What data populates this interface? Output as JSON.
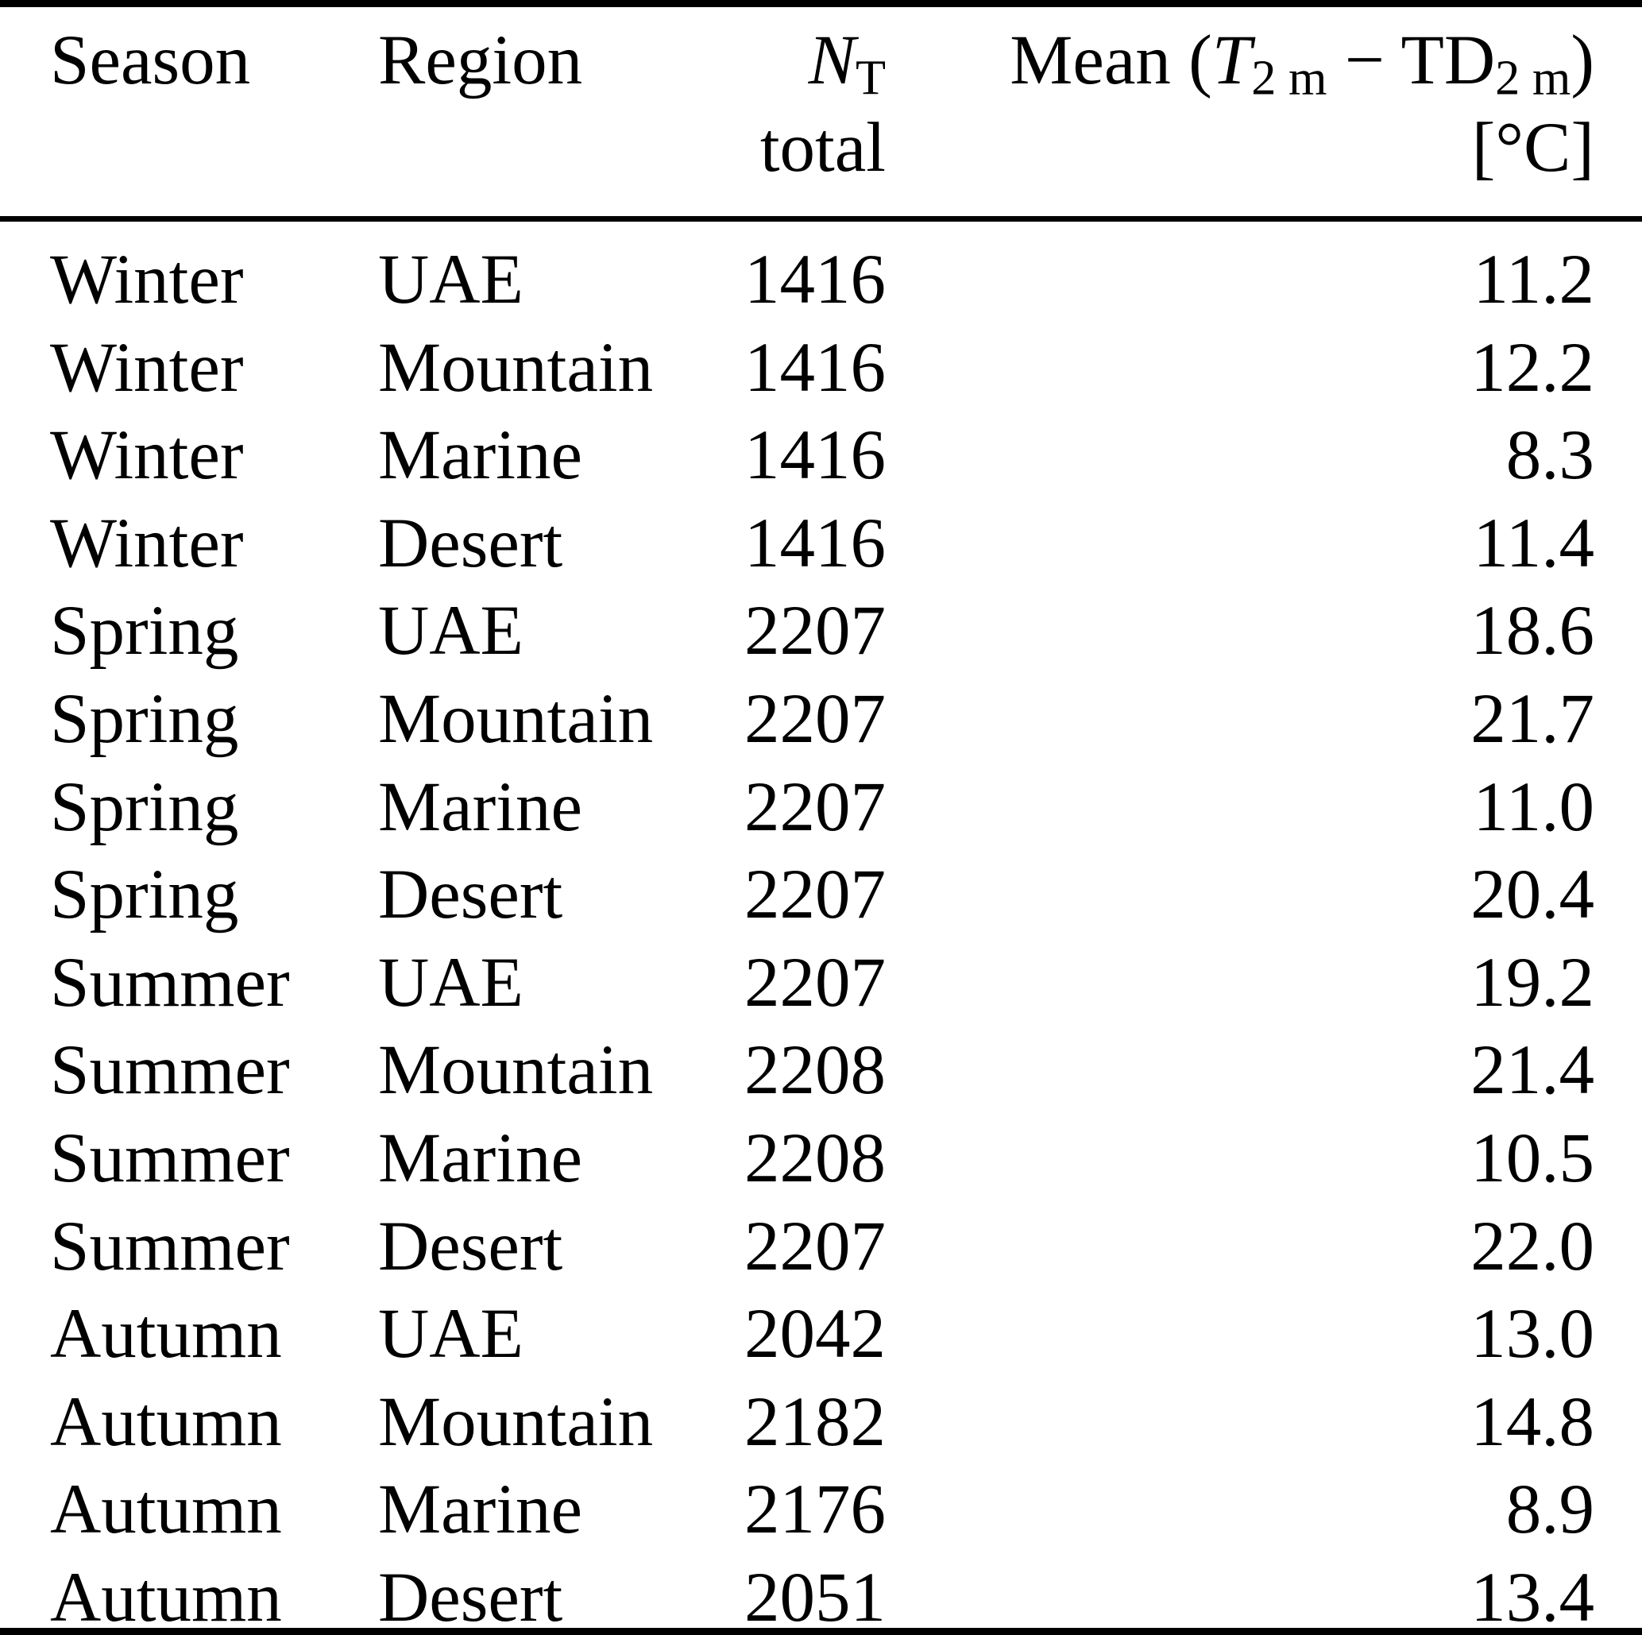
{
  "colors": {
    "background": "#ffffff",
    "text": "#000000",
    "rules": "#000000"
  },
  "table": {
    "header": {
      "season": "Season",
      "region": "Region",
      "n": {
        "symbol": "N",
        "subscript": "T",
        "line2": "total"
      },
      "mean": {
        "prefix": "Mean (",
        "t": "T",
        "t_sub": "2 m",
        "operator": " − ",
        "td": "TD",
        "td_sub": "2 m",
        "suffix": ")",
        "unit": "[°C]"
      }
    },
    "rows": [
      {
        "season": "Winter",
        "region": "UAE",
        "n_total": "1416",
        "mean": "11.2"
      },
      {
        "season": "Winter",
        "region": "Mountain",
        "n_total": "1416",
        "mean": "12.2"
      },
      {
        "season": "Winter",
        "region": "Marine",
        "n_total": "1416",
        "mean": "8.3"
      },
      {
        "season": "Winter",
        "region": "Desert",
        "n_total": "1416",
        "mean": "11.4"
      },
      {
        "season": "Spring",
        "region": "UAE",
        "n_total": "2207",
        "mean": "18.6"
      },
      {
        "season": "Spring",
        "region": "Mountain",
        "n_total": "2207",
        "mean": "21.7"
      },
      {
        "season": "Spring",
        "region": "Marine",
        "n_total": "2207",
        "mean": "11.0"
      },
      {
        "season": "Spring",
        "region": "Desert",
        "n_total": "2207",
        "mean": "20.4"
      },
      {
        "season": "Summer",
        "region": "UAE",
        "n_total": "2207",
        "mean": "19.2"
      },
      {
        "season": "Summer",
        "region": "Mountain",
        "n_total": "2208",
        "mean": "21.4"
      },
      {
        "season": "Summer",
        "region": "Marine",
        "n_total": "2208",
        "mean": "10.5"
      },
      {
        "season": "Summer",
        "region": "Desert",
        "n_total": "2207",
        "mean": "22.0"
      },
      {
        "season": "Autumn",
        "region": "UAE",
        "n_total": "2042",
        "mean": "13.0"
      },
      {
        "season": "Autumn",
        "region": "Mountain",
        "n_total": "2182",
        "mean": "14.8"
      },
      {
        "season": "Autumn",
        "region": "Marine",
        "n_total": "2176",
        "mean": "8.9"
      },
      {
        "season": "Autumn",
        "region": "Desert",
        "n_total": "2051",
        "mean": "13.4"
      }
    ]
  }
}
